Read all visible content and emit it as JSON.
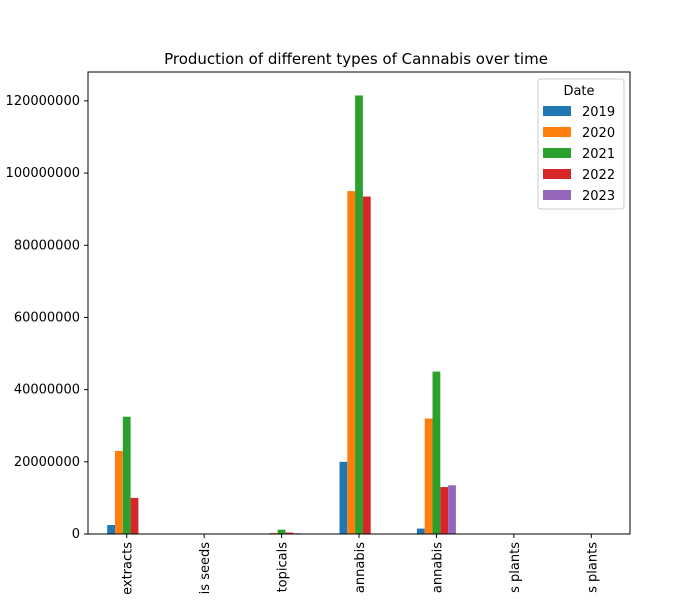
{
  "chart_data": {
    "type": "bar",
    "title": "Production of different types of Cannabis over time",
    "xlabel": "",
    "ylabel": "",
    "ylim": [
      0,
      128000000
    ],
    "yticks": [
      0,
      20000000,
      40000000,
      60000000,
      80000000,
      100000000,
      120000000
    ],
    "ytick_labels": [
      "0",
      "20000000",
      "40000000",
      "60000000",
      "80000000",
      "100000000",
      "120000000"
    ],
    "categories": [
      "extracts",
      "is seeds",
      "topicals",
      "annabis",
      "annabis",
      "s plants",
      "s plants"
    ],
    "legend": {
      "title": "Date",
      "position": "top-right"
    },
    "series": [
      {
        "name": "2019",
        "color": "#1f77b4",
        "values": [
          2500000,
          0,
          0,
          20000000,
          1500000,
          0,
          0
        ]
      },
      {
        "name": "2020",
        "color": "#ff7f0e",
        "values": [
          23000000,
          0,
          300000,
          95000000,
          32000000,
          0,
          0
        ]
      },
      {
        "name": "2021",
        "color": "#2ca02c",
        "values": [
          32500000,
          0,
          1200000,
          121500000,
          45000000,
          0,
          0
        ]
      },
      {
        "name": "2022",
        "color": "#d62728",
        "values": [
          10000000,
          0,
          400000,
          93500000,
          13000000,
          0,
          0
        ]
      },
      {
        "name": "2023",
        "color": "#9467bd",
        "values": [
          0,
          0,
          200000,
          0,
          13500000,
          0,
          0
        ]
      }
    ]
  }
}
